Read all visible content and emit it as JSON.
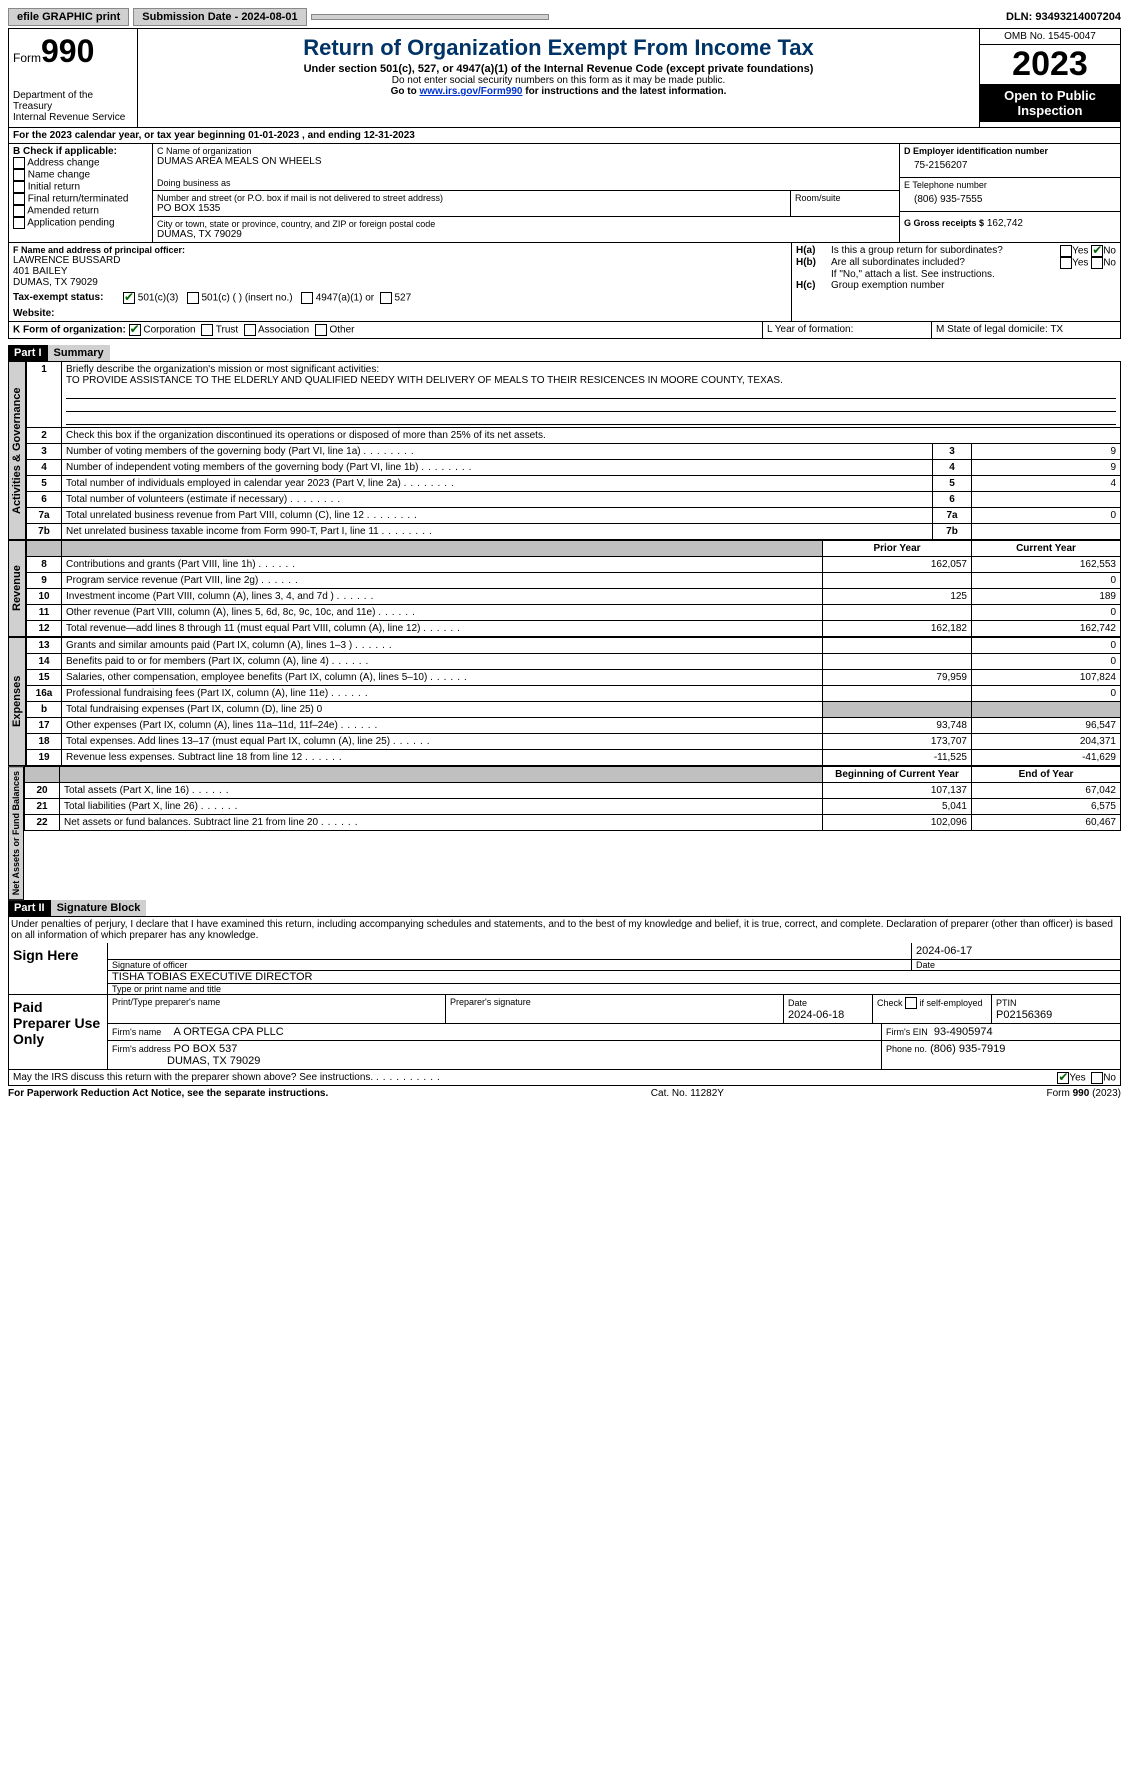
{
  "topbar": {
    "efile": "efile GRAPHIC print",
    "submission": "Submission Date - 2024-08-01",
    "dln": "DLN: 93493214007204"
  },
  "header": {
    "form_label": "Form",
    "form_number": "990",
    "title": "Return of Organization Exempt From Income Tax",
    "subtitle": "Under section 501(c), 527, or 4947(a)(1) of the Internal Revenue Code (except private foundations)",
    "line2": "Do not enter social security numbers on this form as it may be made public.",
    "line3_prefix": "Go to ",
    "line3_link": "www.irs.gov/Form990",
    "line3_suffix": " for instructions and the latest information.",
    "dept": "Department of the Treasury",
    "irs": "Internal Revenue Service",
    "omb": "OMB No. 1545-0047",
    "year": "2023",
    "opi": "Open to Public Inspection"
  },
  "A": {
    "text": "For the 2023 calendar year, or tax year beginning 01-01-2023        , and ending 12-31-2023"
  },
  "B": {
    "label": "B Check if applicable:",
    "items": [
      "Address change",
      "Name change",
      "Initial return",
      "Final return/terminated",
      "Amended return",
      "Application pending"
    ]
  },
  "C": {
    "name_lbl": "C Name of organization",
    "name": "DUMAS AREA MEALS ON WHEELS",
    "dba_lbl": "Doing business as",
    "dba": "",
    "addr_lbl": "Number and street (or P.O. box if mail is not delivered to street address)",
    "addr": "PO BOX 1535",
    "room_lbl": "Room/suite",
    "city_lbl": "City or town, state or province, country, and ZIP or foreign postal code",
    "city": "DUMAS, TX   79029"
  },
  "D": {
    "lbl": "D Employer identification number",
    "val": "75-2156207"
  },
  "E": {
    "lbl": "E Telephone number",
    "val": "(806) 935-7555"
  },
  "G": {
    "lbl": "G Gross receipts $",
    "val": "162,742"
  },
  "F": {
    "lbl": "F  Name and address of principal officer:",
    "name": "LAWRENCE BUSSARD",
    "addr1": "401 BAILEY",
    "addr2": "DUMAS, TX   79029"
  },
  "H": {
    "a_lbl": "Is this a group return for subordinates?",
    "a_yes": "Yes",
    "a_no": "No",
    "b_lbl": "Are all subordinates included?",
    "b_yes": "Yes",
    "b_no": "No",
    "note": "If \"No,\" attach a list. See instructions.",
    "c_lbl": "Group exemption number"
  },
  "I": {
    "lbl": "Tax-exempt status:",
    "opt1": "501(c)(3)",
    "opt2": "501(c) (  ) (insert no.)",
    "opt3": "4947(a)(1) or",
    "opt4": "527"
  },
  "J": {
    "lbl": "Website:",
    "val": ""
  },
  "K": {
    "lbl": "K Form of organization:",
    "opts": [
      "Corporation",
      "Trust",
      "Association",
      "Other"
    ]
  },
  "L": {
    "lbl": "L Year of formation:"
  },
  "M": {
    "lbl": "M State of legal domicile: TX"
  },
  "part1": {
    "num": "Part I",
    "title": "Summary"
  },
  "mission_lbl": "Briefly describe the organization's mission or most significant activities:",
  "mission": "TO PROVIDE ASSISTANCE TO THE ELDERLY AND QUALIFIED NEEDY WITH DELIVERY OF MEALS TO THEIR RESICENCES IN MOORE COUNTY, TEXAS.",
  "line2": "Check this box        if the organization discontinued its operations or disposed of more than 25% of its net assets.",
  "tab_ag": "Activities & Governance",
  "tab_rev": "Revenue",
  "tab_exp": "Expenses",
  "tab_na": "Net Assets or Fund Balances",
  "col_prior": "Prior Year",
  "col_curr": "Current Year",
  "col_beg": "Beginning of Current Year",
  "col_end": "End of Year",
  "ag": [
    {
      "n": "3",
      "t": "Number of voting members of the governing body (Part VI, line 1a)",
      "v": "9"
    },
    {
      "n": "4",
      "t": "Number of independent voting members of the governing body (Part VI, line 1b)",
      "v": "9"
    },
    {
      "n": "5",
      "t": "Total number of individuals employed in calendar year 2023 (Part V, line 2a)",
      "v": "4"
    },
    {
      "n": "6",
      "t": "Total number of volunteers (estimate if necessary)",
      "v": ""
    },
    {
      "n": "7a",
      "t": "Total unrelated business revenue from Part VIII, column (C), line 12",
      "v": "0"
    },
    {
      "n": "7b",
      "t": "Net unrelated business taxable income from Form 990-T, Part I, line 11",
      "v": ""
    }
  ],
  "rev": [
    {
      "n": "8",
      "t": "Contributions and grants (Part VIII, line 1h)",
      "p": "162,057",
      "c": "162,553"
    },
    {
      "n": "9",
      "t": "Program service revenue (Part VIII, line 2g)",
      "p": "",
      "c": "0"
    },
    {
      "n": "10",
      "t": "Investment income (Part VIII, column (A), lines 3, 4, and 7d )",
      "p": "125",
      "c": "189"
    },
    {
      "n": "11",
      "t": "Other revenue (Part VIII, column (A), lines 5, 6d, 8c, 9c, 10c, and 11e)",
      "p": "",
      "c": "0"
    },
    {
      "n": "12",
      "t": "Total revenue—add lines 8 through 11 (must equal Part VIII, column (A), line 12)",
      "p": "162,182",
      "c": "162,742"
    }
  ],
  "exp": [
    {
      "n": "13",
      "t": "Grants and similar amounts paid (Part IX, column (A), lines 1–3 )",
      "p": "",
      "c": "0"
    },
    {
      "n": "14",
      "t": "Benefits paid to or for members (Part IX, column (A), line 4)",
      "p": "",
      "c": "0"
    },
    {
      "n": "15",
      "t": "Salaries, other compensation, employee benefits (Part IX, column (A), lines 5–10)",
      "p": "79,959",
      "c": "107,824"
    },
    {
      "n": "16a",
      "t": "Professional fundraising fees (Part IX, column (A), line 11e)",
      "p": "",
      "c": "0"
    },
    {
      "n": "b",
      "t": "Total fundraising expenses (Part IX, column (D), line 25) 0",
      "shade": true
    },
    {
      "n": "17",
      "t": "Other expenses (Part IX, column (A), lines 11a–11d, 11f–24e)",
      "p": "93,748",
      "c": "96,547"
    },
    {
      "n": "18",
      "t": "Total expenses. Add lines 13–17 (must equal Part IX, column (A), line 25)",
      "p": "173,707",
      "c": "204,371"
    },
    {
      "n": "19",
      "t": "Revenue less expenses. Subtract line 18 from line 12",
      "p": "-11,525",
      "c": "-41,629"
    }
  ],
  "na": [
    {
      "n": "20",
      "t": "Total assets (Part X, line 16)",
      "p": "107,137",
      "c": "67,042"
    },
    {
      "n": "21",
      "t": "Total liabilities (Part X, line 26)",
      "p": "5,041",
      "c": "6,575"
    },
    {
      "n": "22",
      "t": "Net assets or fund balances. Subtract line 21 from line 20",
      "p": "102,096",
      "c": "60,467"
    }
  ],
  "part2": {
    "num": "Part II",
    "title": "Signature Block"
  },
  "perjury": "Under penalties of perjury, I declare that I have examined this return, including accompanying schedules and statements, and to the best of my knowledge and belief, it is true, correct, and complete. Declaration of preparer (other than officer) is based on all information of which preparer has any knowledge.",
  "sign": {
    "here": "Sign Here",
    "sig_lbl": "Signature of officer",
    "date_lbl": "Date",
    "date": "2024-06-17",
    "name": "TISHA TOBIAS  EXECUTIVE DIRECTOR",
    "type_lbl": "Type or print name and title"
  },
  "prep": {
    "lbl": "Paid Preparer Use Only",
    "name_lbl": "Print/Type preparer's name",
    "sig_lbl": "Preparer's signature",
    "date_lbl": "Date",
    "date": "2024-06-18",
    "check_lbl": "Check         if self-employed",
    "ptin_lbl": "PTIN",
    "ptin": "P02156369",
    "firm_lbl": "Firm's name",
    "firm": "A ORTEGA CPA PLLC",
    "ein_lbl": "Firm's EIN",
    "ein": "93-4905974",
    "addr_lbl": "Firm's address",
    "addr": "PO BOX 537",
    "city": "DUMAS, TX   79029",
    "phone_lbl": "Phone no.",
    "phone": "(806) 935-7919"
  },
  "discuss": "May the IRS discuss this return with the preparer shown above? See instructions.",
  "footer": {
    "l": "For Paperwork Reduction Act Notice, see the separate instructions.",
    "c": "Cat. No. 11282Y",
    "r": "Form 990 (2023)"
  }
}
